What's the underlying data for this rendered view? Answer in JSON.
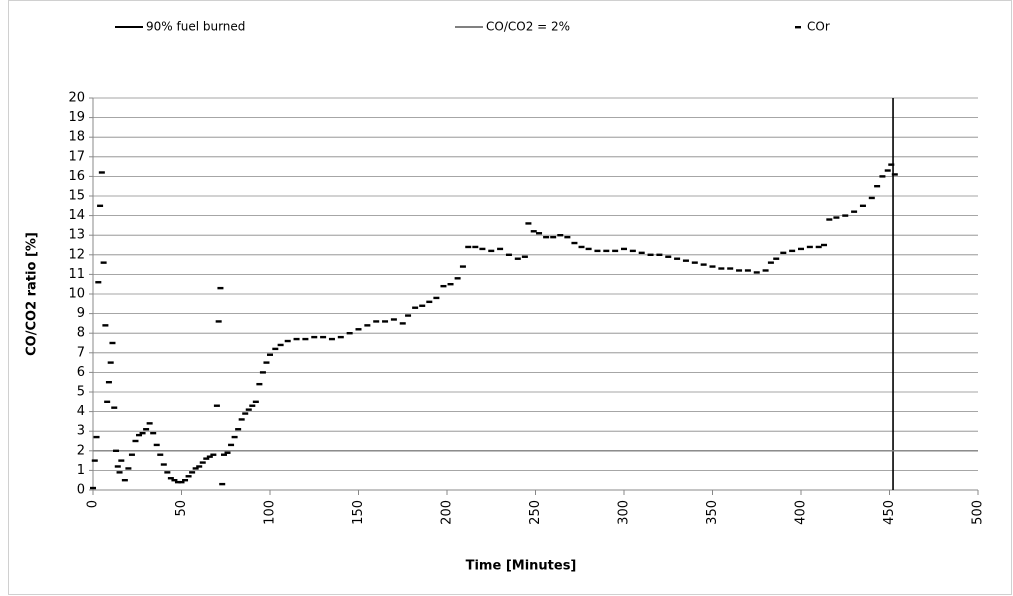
{
  "chart_data": {
    "type": "scatter",
    "xlabel": "Time [Minutes]",
    "ylabel": "CO/CO2 ratio [%]",
    "xlim": [
      0,
      500
    ],
    "ylim": [
      0,
      20
    ],
    "xticks": [
      0,
      50,
      100,
      150,
      200,
      250,
      300,
      350,
      400,
      450,
      500
    ],
    "yticks": [
      0,
      1,
      2,
      3,
      4,
      5,
      6,
      7,
      8,
      9,
      10,
      11,
      12,
      13,
      14,
      15,
      16,
      17,
      18,
      19,
      20
    ],
    "grid": true,
    "legend": "top",
    "series": [
      {
        "name": "90% fuel burned",
        "style": "line",
        "color": "#000000",
        "x": [
          452,
          452
        ],
        "values": [
          0,
          20
        ]
      },
      {
        "name": "CO/CO2 = 2%",
        "style": "line",
        "color": "#808080",
        "x": [
          0,
          500
        ],
        "values": [
          2,
          2
        ]
      },
      {
        "name": "COr",
        "style": "dash",
        "color": "#000000",
        "x": [
          0,
          1,
          2,
          3,
          4,
          5,
          6,
          7,
          8,
          9,
          10,
          11,
          12,
          13,
          14,
          15,
          16,
          18,
          20,
          22,
          24,
          26,
          28,
          30,
          32,
          34,
          36,
          38,
          40,
          42,
          44,
          46,
          48,
          50,
          52,
          54,
          56,
          58,
          60,
          62,
          64,
          66,
          68,
          70,
          71,
          72,
          73,
          74,
          76,
          78,
          80,
          82,
          84,
          86,
          88,
          90,
          92,
          94,
          96,
          98,
          100,
          103,
          106,
          110,
          115,
          120,
          125,
          130,
          135,
          140,
          145,
          150,
          155,
          160,
          165,
          170,
          175,
          178,
          182,
          186,
          190,
          194,
          198,
          202,
          206,
          209,
          212,
          216,
          220,
          225,
          230,
          235,
          240,
          244,
          246,
          249,
          252,
          256,
          260,
          264,
          268,
          272,
          276,
          280,
          285,
          290,
          295,
          300,
          305,
          310,
          315,
          320,
          325,
          330,
          335,
          340,
          345,
          350,
          355,
          360,
          365,
          370,
          375,
          380,
          383,
          386,
          390,
          395,
          400,
          405,
          410,
          413,
          416,
          420,
          425,
          430,
          435,
          440,
          443,
          446,
          449,
          451,
          453
        ],
        "values": [
          0.1,
          1.5,
          2.7,
          10.6,
          14.5,
          16.2,
          11.6,
          8.4,
          4.5,
          5.5,
          6.5,
          7.5,
          4.2,
          2,
          1.2,
          0.9,
          1.5,
          0.5,
          1.1,
          1.8,
          2.5,
          2.8,
          2.9,
          3.1,
          3.4,
          2.9,
          2.3,
          1.8,
          1.3,
          0.9,
          0.6,
          0.5,
          0.4,
          0.4,
          0.5,
          0.7,
          0.9,
          1.1,
          1.2,
          1.4,
          1.6,
          1.7,
          1.8,
          4.3,
          8.6,
          10.3,
          0.3,
          1.8,
          1.9,
          2.3,
          2.7,
          3.1,
          3.6,
          3.9,
          4.1,
          4.3,
          4.5,
          5.4,
          6,
          6.5,
          6.9,
          7.2,
          7.4,
          7.6,
          7.7,
          7.7,
          7.8,
          7.8,
          7.7,
          7.8,
          8,
          8.2,
          8.4,
          8.6,
          8.6,
          8.7,
          8.5,
          8.9,
          9.3,
          9.4,
          9.6,
          9.8,
          10.4,
          10.5,
          10.8,
          11.4,
          12.4,
          12.4,
          12.3,
          12.2,
          12.3,
          12,
          11.8,
          11.9,
          13.6,
          13.2,
          13.1,
          12.9,
          12.9,
          13,
          12.9,
          12.6,
          12.4,
          12.3,
          12.2,
          12.2,
          12.2,
          12.3,
          12.2,
          12.1,
          12,
          12,
          11.9,
          11.8,
          11.7,
          11.6,
          11.5,
          11.4,
          11.3,
          11.3,
          11.2,
          11.2,
          11.1,
          11.2,
          11.6,
          11.8,
          12.1,
          12.2,
          12.3,
          12.4,
          12.4,
          12.5,
          13.8,
          13.9,
          14,
          14.2,
          14.5,
          14.9,
          15.5,
          16,
          16.3,
          16.6,
          16.1
        ]
      }
    ]
  }
}
